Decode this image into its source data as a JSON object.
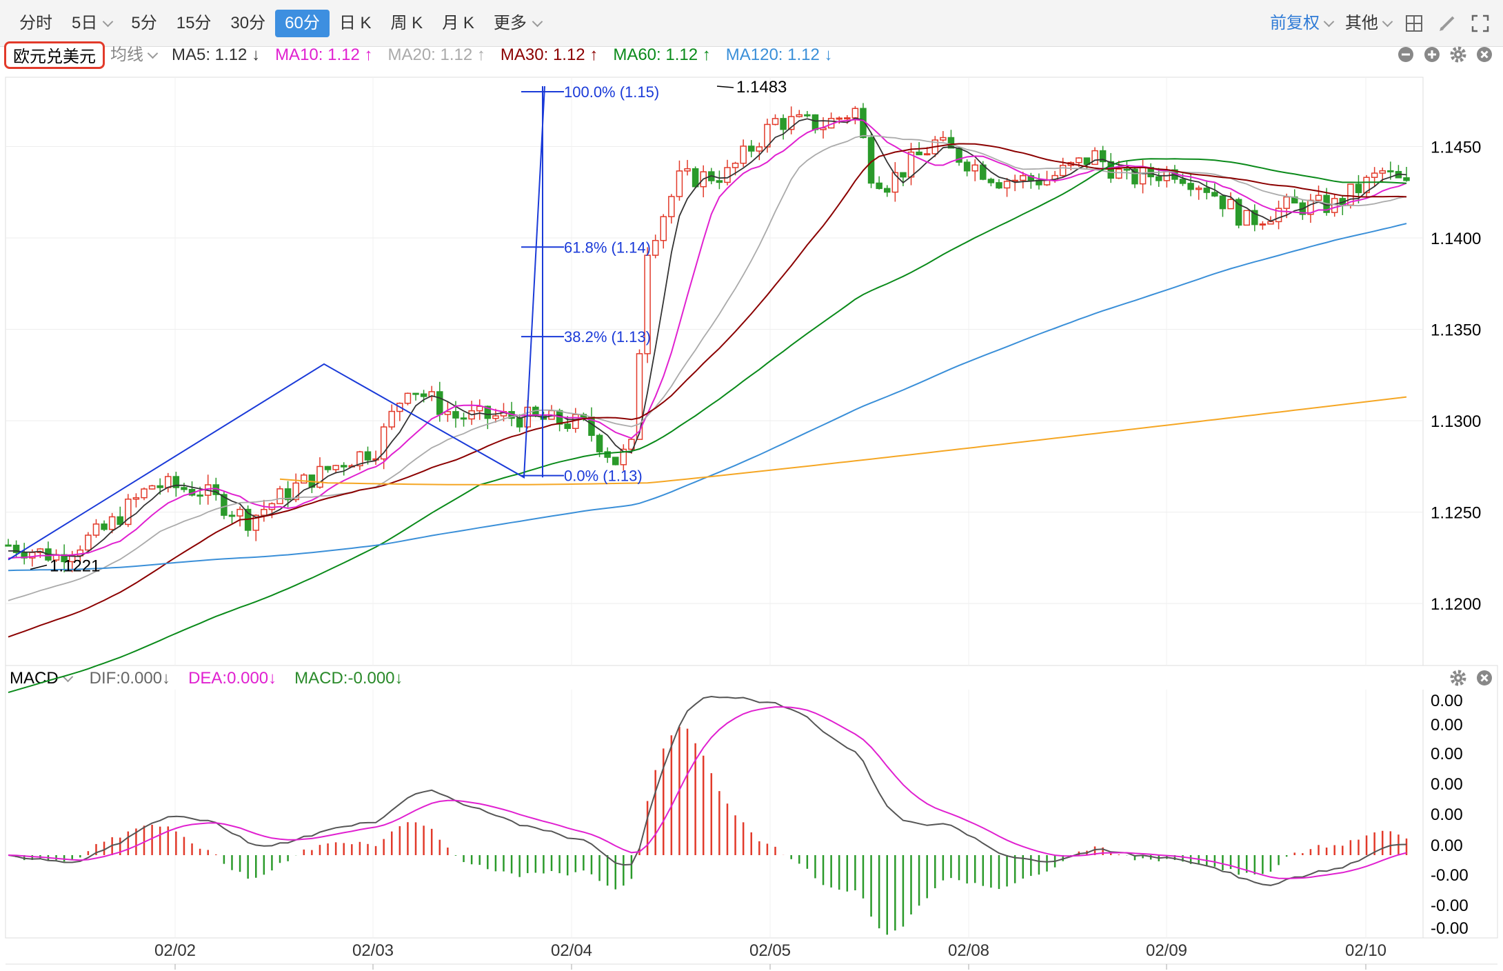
{
  "toolbar": {
    "tabs": [
      {
        "label": "分时",
        "dropdown": false,
        "active": false
      },
      {
        "label": "5日",
        "dropdown": true,
        "active": false
      },
      {
        "label": "5分",
        "dropdown": false,
        "active": false
      },
      {
        "label": "15分",
        "dropdown": false,
        "active": false
      },
      {
        "label": "30分",
        "dropdown": false,
        "active": false
      },
      {
        "label": "60分",
        "dropdown": false,
        "active": true
      },
      {
        "label": "日 K",
        "dropdown": false,
        "active": false
      },
      {
        "label": "周 K",
        "dropdown": false,
        "active": false
      },
      {
        "label": "月 K",
        "dropdown": false,
        "active": false
      },
      {
        "label": "更多",
        "dropdown": true,
        "active": false
      }
    ],
    "adjust_label": "前复权",
    "other_label": "其他",
    "icons": [
      "grid-icon",
      "pencil-icon",
      "fullscreen-icon"
    ]
  },
  "symbol": "欧元兑美元",
  "main_legend": {
    "type_label": "均线",
    "items": [
      {
        "label": "MA5: 1.12 ↓",
        "color": "#333333"
      },
      {
        "label": "MA10: 1.12 ↑",
        "color": "#e020d0"
      },
      {
        "label": "MA20: 1.12 ↑",
        "color": "#aaaaaa"
      },
      {
        "label": "MA30: 1.12 ↑",
        "color": "#8b0000"
      },
      {
        "label": "MA60: 1.12 ↑",
        "color": "#0a8a1a"
      },
      {
        "label": "MA120: 1.12 ↓",
        "color": "#3a8fd8"
      }
    ]
  },
  "macd_legend": {
    "name": "MACD",
    "items": [
      {
        "label": "DIF:0.000↓",
        "color": "#666666"
      },
      {
        "label": "DEA:0.000↓",
        "color": "#e020d0"
      },
      {
        "label": "MACD:-0.000↓",
        "color": "#2a8a2a"
      }
    ]
  },
  "colors": {
    "up": "#e23a2a",
    "down": "#2a9a2a",
    "fib": "#1a3ad8",
    "ma250": "#f5a623"
  },
  "chart_data": {
    "type": "candlestick",
    "title": "",
    "price_axis": {
      "ylim": [
        1.1168,
        1.1483
      ],
      "ticks": [
        "1.1200",
        "1.1250",
        "1.1300",
        "1.1350",
        "1.1400",
        "1.1450"
      ]
    },
    "macd_axis": {
      "ticks": [
        "0.00",
        "0.00",
        "0.00",
        "0.00",
        "0.00",
        "0.00",
        "-0.00",
        "-0.00",
        "-0.00"
      ]
    },
    "x_labels": [
      "02/02",
      "02/03",
      "02/04",
      "02/05",
      "02/08",
      "02/09",
      "02/10"
    ],
    "annotations": {
      "high": "1.1483",
      "low": "1.1221"
    },
    "fibonacci": [
      {
        "label": "100.0% (1.15)",
        "level": 1.148
      },
      {
        "label": "61.8% (1.14)",
        "level": 1.1395
      },
      {
        "label": "38.2% (1.13)",
        "level": 1.1346
      },
      {
        "label": "0.0% (1.13)",
        "level": 1.127
      }
    ],
    "grid": true
  }
}
